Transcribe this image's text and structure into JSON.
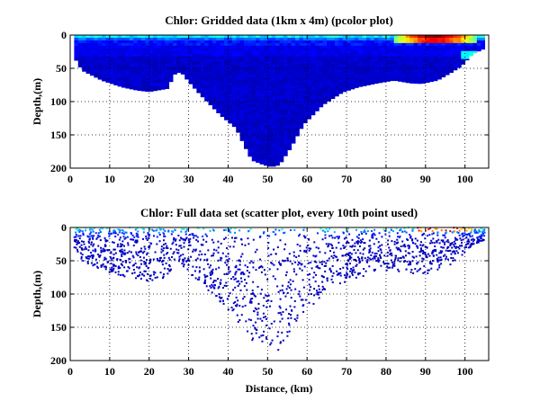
{
  "chart_data": [
    {
      "type": "heatmap",
      "title": "Chlor: Gridded data (1km x 4m) (pcolor plot)",
      "xlabel": "",
      "ylabel": "Depth,(m)",
      "xlim": [
        0,
        106
      ],
      "ylim": [
        200,
        0
      ],
      "x_ticks": [
        0,
        10,
        20,
        30,
        40,
        50,
        60,
        70,
        80,
        90,
        100
      ],
      "y_ticks": [
        0,
        50,
        100,
        150,
        200
      ],
      "grid": true,
      "colormap": "jet",
      "cell_size": {
        "dx_km": 1,
        "dz_m": 4
      },
      "bottom_depth_profile": {
        "distance_km": [
          1,
          3,
          8,
          13,
          17,
          20,
          25,
          26,
          28,
          30,
          33,
          36,
          38,
          42,
          44,
          46,
          49,
          51,
          53,
          56,
          59,
          64,
          69,
          73,
          78,
          82,
          86,
          89,
          93,
          96,
          99,
          102,
          105
        ],
        "depth_m": [
          33,
          53,
          68,
          78,
          83,
          85,
          80,
          60,
          55,
          70,
          90,
          108,
          120,
          140,
          165,
          188,
          195,
          198,
          195,
          168,
          135,
          105,
          86,
          78,
          72,
          68,
          72,
          73,
          68,
          58,
          47,
          28,
          20
        ]
      },
      "high_chlor_region": {
        "distance_km": [
          82,
          102
        ],
        "depth_m": [
          0,
          12
        ]
      }
    },
    {
      "type": "scatter",
      "title": "Chlor: Full data set (scatter plot, every 10th point used)",
      "xlabel": "Distance, (km)",
      "ylabel": "Depth,(m)",
      "xlim": [
        0,
        106
      ],
      "ylim": [
        200,
        0
      ],
      "x_ticks": [
        0,
        10,
        20,
        30,
        40,
        50,
        60,
        70,
        80,
        90,
        100
      ],
      "y_ticks": [
        0,
        50,
        100,
        150,
        200
      ],
      "grid": true,
      "colormap": "jet",
      "high_chlor_region": {
        "distance_km": [
          88,
          102
        ],
        "depth_m": [
          0,
          6
        ]
      }
    }
  ]
}
